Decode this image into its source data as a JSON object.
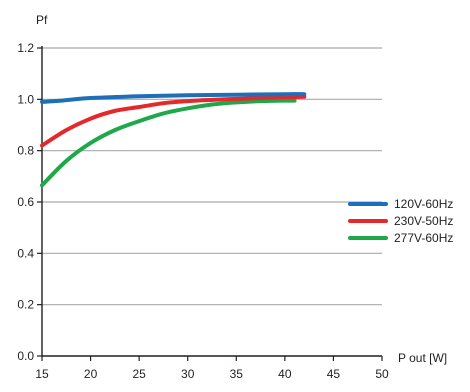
{
  "chart_data": {
    "type": "line",
    "title": "",
    "ylabel": "Pf",
    "xlabel": "P out [W]",
    "xlim": [
      15,
      50
    ],
    "ylim": [
      0.0,
      1.2
    ],
    "x_ticks": [
      "15",
      "20",
      "25",
      "30",
      "35",
      "40",
      "45",
      "50"
    ],
    "y_ticks": [
      "0.0",
      "0.2",
      "0.4",
      "0.6",
      "0.8",
      "1.0",
      "1.2"
    ],
    "grid": "horizontal",
    "legend_position": "right",
    "series": [
      {
        "name": "120V-60Hz",
        "color": "#1f6fb8",
        "x": [
          15,
          17,
          20,
          25,
          30,
          35,
          40,
          42
        ],
        "y": [
          0.99,
          0.995,
          1.005,
          1.012,
          1.016,
          1.018,
          1.02,
          1.02
        ]
      },
      {
        "name": "230V-50Hz",
        "color": "#e4282b",
        "x": [
          15,
          17.5,
          20,
          22.5,
          25,
          27.5,
          30,
          32.5,
          35,
          37.5,
          40,
          42
        ],
        "y": [
          0.82,
          0.88,
          0.925,
          0.955,
          0.97,
          0.985,
          0.993,
          0.998,
          1.002,
          1.005,
          1.008,
          1.01
        ]
      },
      {
        "name": "277V-60Hz",
        "color": "#1ea84a",
        "x": [
          15,
          17.5,
          20,
          22.5,
          25,
          27.5,
          30,
          32.5,
          35,
          37.5,
          40,
          41
        ],
        "y": [
          0.665,
          0.76,
          0.83,
          0.88,
          0.915,
          0.945,
          0.965,
          0.98,
          0.988,
          0.993,
          0.995,
          0.995
        ]
      }
    ]
  }
}
